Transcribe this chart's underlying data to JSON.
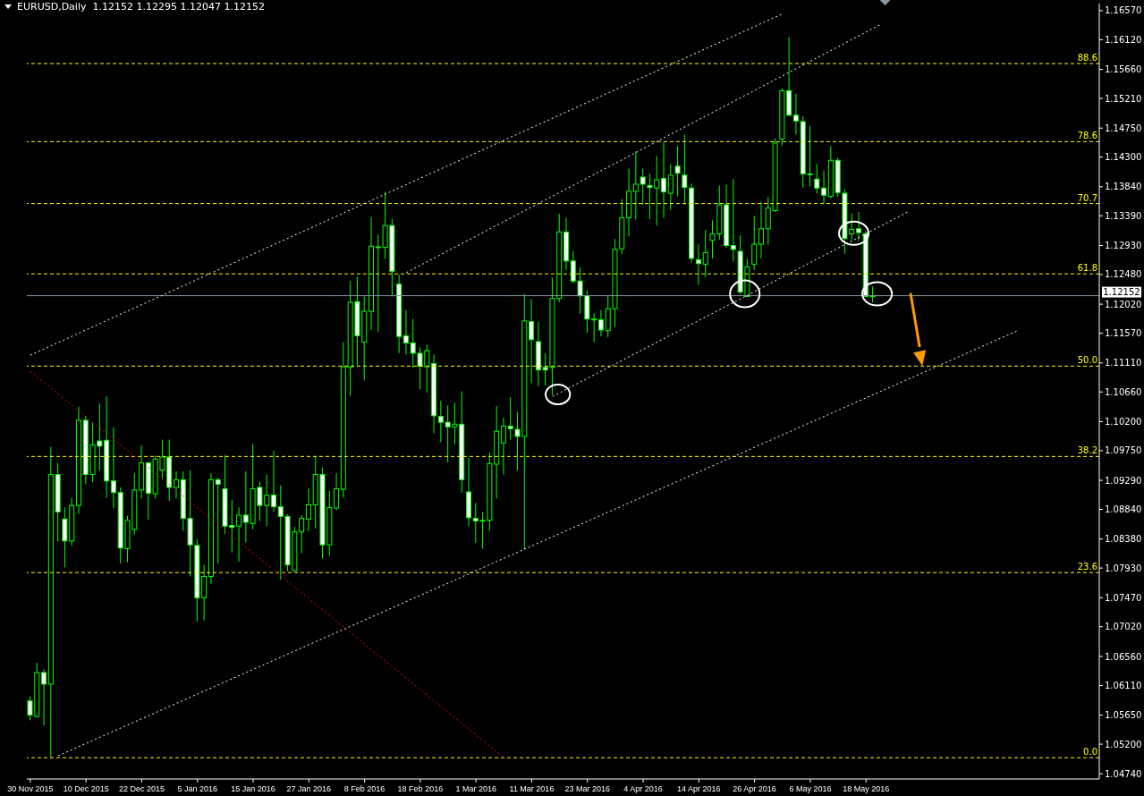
{
  "chart_data": {
    "type": "candlestick",
    "title": "EURUSD,Daily  1.12152 1.12295 1.12047 1.12152",
    "categories": [
      "30 Nov 2015",
      null,
      null,
      null,
      null,
      null,
      null,
      null,
      "10 Dec 2015",
      null,
      null,
      null,
      null,
      null,
      null,
      null,
      "22 Dec 2015",
      null,
      null,
      null,
      null,
      null,
      null,
      null,
      "5 Jan 2016",
      null,
      null,
      null,
      null,
      null,
      null,
      null,
      "15 Jan 2016",
      null,
      null,
      null,
      null,
      null,
      null,
      null,
      "27 Jan 2016",
      null,
      null,
      null,
      null,
      null,
      null,
      null,
      "8 Feb 2016",
      null,
      null,
      null,
      null,
      null,
      null,
      null,
      "18 Feb 2016",
      null,
      null,
      null,
      null,
      null,
      null,
      null,
      "1 Mar 2016",
      null,
      null,
      null,
      null,
      null,
      null,
      null,
      "11 Mar 2016",
      null,
      null,
      null,
      null,
      null,
      null,
      null,
      "23 Mar 2016",
      null,
      null,
      null,
      null,
      null,
      null,
      null,
      "4 Apr 2016",
      null,
      null,
      null,
      null,
      null,
      null,
      null,
      "14 Apr 2016",
      null,
      null,
      null,
      null,
      null,
      null,
      null,
      "26 Apr 2016",
      null,
      null,
      null,
      null,
      null,
      null,
      null,
      "6 May 2016",
      null,
      null,
      null,
      null,
      null,
      null,
      null,
      "18 May 2016",
      null,
      null,
      null,
      null,
      null,
      null,
      null,
      null,
      null,
      null,
      null,
      null,
      null,
      null,
      null,
      null,
      null,
      null,
      null,
      null,
      null,
      null,
      null,
      null,
      null,
      null,
      null,
      null,
      null,
      null,
      null,
      null,
      null
    ],
    "ohlc": [
      [
        1.0587,
        1.0594,
        1.0557,
        1.0565
      ],
      [
        1.0563,
        1.0646,
        1.0561,
        1.0631
      ],
      [
        1.0631,
        1.0636,
        1.0549,
        1.0613
      ],
      [
        1.0613,
        1.0981,
        1.0499,
        1.0938
      ],
      [
        1.0938,
        1.0956,
        1.0834,
        1.088
      ],
      [
        1.0869,
        1.0887,
        1.0794,
        1.0835
      ],
      [
        1.0835,
        1.0902,
        1.0828,
        1.089
      ],
      [
        1.089,
        1.1043,
        1.0877,
        1.1022
      ],
      [
        1.1022,
        1.1029,
        1.0923,
        1.0938
      ],
      [
        1.0938,
        1.1018,
        1.0926,
        1.0984
      ],
      [
        1.099,
        1.1048,
        1.0944,
        1.0982
      ],
      [
        1.0991,
        1.1059,
        1.0902,
        1.0928
      ],
      [
        1.0928,
        1.1011,
        1.0886,
        1.091
      ],
      [
        1.091,
        1.0918,
        1.08,
        1.0824
      ],
      [
        1.0823,
        1.0874,
        1.0802,
        1.0867
      ],
      [
        1.0853,
        1.094,
        1.0845,
        1.0914
      ],
      [
        1.0914,
        1.0983,
        1.0901,
        1.0956
      ],
      [
        1.0956,
        1.0958,
        1.0868,
        1.0909
      ],
      [
        1.0908,
        1.0967,
        1.0901,
        1.0962
      ],
      [
        1.0945,
        1.0992,
        1.0932,
        1.0965
      ],
      [
        1.0965,
        1.0992,
        1.0897,
        1.0918
      ],
      [
        1.0918,
        1.0943,
        1.0901,
        1.093
      ],
      [
        1.093,
        1.0943,
        1.0851,
        1.087
      ],
      [
        1.087,
        1.0945,
        1.078,
        1.0829
      ],
      [
        1.0828,
        1.0838,
        1.071,
        1.0747
      ],
      [
        1.0747,
        1.0798,
        1.0712,
        1.078
      ],
      [
        1.078,
        1.094,
        1.0768,
        1.093
      ],
      [
        1.093,
        1.0933,
        1.08,
        1.0923
      ],
      [
        1.0916,
        1.0968,
        1.0846,
        1.0858
      ],
      [
        1.0859,
        1.0899,
        1.0817,
        1.0856
      ],
      [
        1.0858,
        1.0887,
        1.0803,
        1.0875
      ],
      [
        1.0875,
        1.0943,
        1.0833,
        1.0864
      ],
      [
        1.0862,
        1.0985,
        1.0853,
        1.0916
      ],
      [
        1.0918,
        1.0927,
        1.0866,
        1.089
      ],
      [
        1.089,
        1.0938,
        1.0858,
        1.0906
      ],
      [
        1.0906,
        1.0975,
        1.088,
        1.0888
      ],
      [
        1.0888,
        1.0921,
        1.0775,
        1.0873
      ],
      [
        1.0873,
        1.0876,
        1.0788,
        1.0798
      ],
      [
        1.0789,
        1.0857,
        1.0788,
        1.0849
      ],
      [
        1.0849,
        1.0875,
        1.0816,
        1.087
      ],
      [
        1.0869,
        1.0916,
        1.085,
        1.0891
      ],
      [
        1.0891,
        1.0967,
        1.0854,
        1.0938
      ],
      [
        1.0938,
        1.0949,
        1.0808,
        1.0829
      ],
      [
        1.0829,
        1.0913,
        1.0812,
        1.0887
      ],
      [
        1.0886,
        1.094,
        1.0883,
        1.0916
      ],
      [
        1.0915,
        1.1143,
        1.0902,
        1.1105
      ],
      [
        1.1104,
        1.1238,
        1.106,
        1.1205
      ],
      [
        1.1206,
        1.1245,
        1.1107,
        1.1153
      ],
      [
        1.1143,
        1.1214,
        1.1084,
        1.1191
      ],
      [
        1.1191,
        1.1337,
        1.1162,
        1.1292
      ],
      [
        1.129,
        1.131,
        1.1159,
        1.1291
      ],
      [
        1.129,
        1.1376,
        1.1272,
        1.1324
      ],
      [
        1.1324,
        1.1334,
        1.1214,
        1.1253
      ],
      [
        1.1233,
        1.1248,
        1.1126,
        1.1152
      ],
      [
        1.1153,
        1.1193,
        1.1124,
        1.1142
      ],
      [
        1.1142,
        1.1179,
        1.1104,
        1.1126
      ],
      [
        1.1126,
        1.1135,
        1.107,
        1.1106
      ],
      [
        1.1105,
        1.1139,
        1.1065,
        1.113
      ],
      [
        1.111,
        1.1124,
        1.1002,
        1.1029
      ],
      [
        1.1028,
        1.1052,
        1.0988,
        1.1019
      ],
      [
        1.1019,
        1.1045,
        1.0957,
        1.1012
      ],
      [
        1.1012,
        1.1049,
        1.0985,
        1.1016
      ],
      [
        1.1016,
        1.1067,
        1.091,
        1.093
      ],
      [
        1.0911,
        1.0964,
        1.0858,
        1.0871
      ],
      [
        1.087,
        1.0894,
        1.0832,
        1.0866
      ],
      [
        1.0867,
        1.088,
        1.0823,
        1.0867
      ],
      [
        1.0867,
        1.0972,
        1.0851,
        1.0955
      ],
      [
        1.0954,
        1.1044,
        1.0901,
        1.1005
      ],
      [
        1.0987,
        1.1026,
        1.0938,
        1.1013
      ],
      [
        1.1013,
        1.1058,
        1.0992,
        1.1009
      ],
      [
        1.1008,
        1.1035,
        1.0944,
        1.0997
      ],
      [
        1.0997,
        1.1218,
        1.0822,
        1.1176
      ],
      [
        1.1175,
        1.121,
        1.108,
        1.1147
      ],
      [
        1.1144,
        1.1175,
        1.1075,
        1.11
      ],
      [
        1.1104,
        1.1126,
        1.1076,
        1.11
      ],
      [
        1.1104,
        1.1243,
        1.1061,
        1.1211
      ],
      [
        1.1211,
        1.1342,
        1.1205,
        1.1314
      ],
      [
        1.1314,
        1.1336,
        1.1255,
        1.1269
      ],
      [
        1.1269,
        1.1284,
        1.1234,
        1.1238
      ],
      [
        1.1238,
        1.1259,
        1.1187,
        1.1215
      ],
      [
        1.1215,
        1.1223,
        1.1158,
        1.1179
      ],
      [
        1.1179,
        1.1188,
        1.1143,
        1.1179
      ],
      [
        1.1178,
        1.1193,
        1.1152,
        1.1162
      ],
      [
        1.1161,
        1.1215,
        1.1151,
        1.1195
      ],
      [
        1.1195,
        1.1303,
        1.1167,
        1.1287
      ],
      [
        1.1288,
        1.1365,
        1.128,
        1.1336
      ],
      [
        1.1336,
        1.1412,
        1.1307,
        1.1377
      ],
      [
        1.1377,
        1.1439,
        1.1333,
        1.1388
      ],
      [
        1.1399,
        1.1412,
        1.1356,
        1.1388
      ],
      [
        1.1386,
        1.1404,
        1.1334,
        1.1383
      ],
      [
        1.1382,
        1.1432,
        1.1324,
        1.1395
      ],
      [
        1.1397,
        1.1453,
        1.1336,
        1.1376
      ],
      [
        1.1374,
        1.1419,
        1.1348,
        1.1402
      ],
      [
        1.1416,
        1.1447,
        1.1369,
        1.1405
      ],
      [
        1.1402,
        1.1465,
        1.1357,
        1.1383
      ],
      [
        1.1382,
        1.1389,
        1.1267,
        1.1273
      ],
      [
        1.1271,
        1.1295,
        1.1232,
        1.1265
      ],
      [
        1.1264,
        1.1317,
        1.1244,
        1.1282
      ],
      [
        1.1301,
        1.1332,
        1.1273,
        1.1311
      ],
      [
        1.1311,
        1.1386,
        1.1302,
        1.1356
      ],
      [
        1.1356,
        1.1387,
        1.1289,
        1.1293
      ],
      [
        1.1293,
        1.1396,
        1.1268,
        1.1287
      ],
      [
        1.1284,
        1.1309,
        1.1217,
        1.1221
      ],
      [
        1.1214,
        1.1272,
        1.1214,
        1.126
      ],
      [
        1.1264,
        1.1339,
        1.1255,
        1.1295
      ],
      [
        1.1295,
        1.136,
        1.1273,
        1.1319
      ],
      [
        1.1319,
        1.1368,
        1.1294,
        1.1351
      ],
      [
        1.1347,
        1.1459,
        1.1345,
        1.1452
      ],
      [
        1.1458,
        1.1537,
        1.1448,
        1.1533
      ],
      [
        1.1533,
        1.1616,
        1.1494,
        1.1495
      ],
      [
        1.1495,
        1.1529,
        1.1465,
        1.1486
      ],
      [
        1.1485,
        1.1493,
        1.1383,
        1.1404
      ],
      [
        1.1404,
        1.1478,
        1.1385,
        1.1404
      ],
      [
        1.1396,
        1.1419,
        1.1374,
        1.1382
      ],
      [
        1.1382,
        1.1409,
        1.1358,
        1.1371
      ],
      [
        1.1369,
        1.1447,
        1.1366,
        1.1425
      ],
      [
        1.1425,
        1.1429,
        1.1368,
        1.1375
      ],
      [
        1.1374,
        1.138,
        1.128,
        1.1304
      ],
      [
        1.1311,
        1.1343,
        1.1301,
        1.1318
      ],
      [
        1.1319,
        1.1345,
        1.13,
        1.1313
      ],
      [
        1.1311,
        1.1315,
        1.1214,
        1.1214
      ],
      [
        1.12152,
        1.12295,
        1.12047,
        1.12152
      ],
      null,
      null,
      null,
      null,
      null,
      null,
      null,
      null,
      null,
      null,
      null,
      null,
      null,
      null,
      null,
      null,
      null,
      null,
      null,
      null,
      null,
      null,
      null,
      null,
      null,
      null,
      null,
      null,
      null,
      null,
      null,
      null
    ],
    "series": [
      {
        "type": "line",
        "color": "#ffffff",
        "line_style": "dotted",
        "values": [
          1.1123,
          null,
          null,
          null,
          null,
          null,
          null,
          null,
          null,
          null,
          null,
          null,
          null,
          null,
          null,
          null,
          null,
          null,
          null,
          null,
          null,
          null,
          null,
          null,
          null,
          null,
          null,
          null,
          null,
          null,
          null,
          null,
          null,
          null,
          null,
          null,
          null,
          null,
          null,
          null,
          null,
          null,
          null,
          null,
          null,
          null,
          null,
          null,
          null,
          null,
          null,
          null,
          null,
          null,
          null,
          null,
          null,
          null,
          null,
          null,
          null,
          null,
          null,
          null,
          null,
          null,
          null,
          null,
          null,
          null,
          null,
          null,
          null,
          null,
          null,
          null,
          null,
          null,
          null,
          null,
          null,
          null,
          null,
          null,
          null,
          null,
          null,
          null,
          null,
          null,
          null,
          null,
          null,
          null,
          null,
          null,
          null,
          null,
          null,
          null,
          null,
          null,
          null,
          null,
          null,
          null,
          null,
          null,
          1.1652,
          null,
          null,
          null,
          null,
          null,
          null,
          null,
          null,
          null,
          null,
          null,
          null,
          null,
          null,
          null,
          null,
          null,
          null,
          null,
          null,
          null,
          null,
          null,
          null,
          null,
          null,
          null,
          null,
          null,
          null,
          null,
          null,
          null,
          null,
          null,
          null,
          null,
          null,
          null,
          null,
          null,
          null,
          null,
          null,
          null
        ]
      },
      {
        "type": "line",
        "color": "#ffffff",
        "line_style": "dotted",
        "values": [
          null,
          null,
          null,
          null,
          null,
          null,
          null,
          null,
          null,
          null,
          null,
          null,
          null,
          null,
          null,
          null,
          null,
          null,
          null,
          null,
          null,
          null,
          null,
          null,
          null,
          null,
          null,
          null,
          null,
          null,
          null,
          null,
          null,
          null,
          null,
          null,
          null,
          null,
          null,
          null,
          null,
          null,
          null,
          null,
          null,
          null,
          null,
          null,
          null,
          null,
          null,
          null,
          null,
          null,
          1.1251,
          null,
          null,
          null,
          null,
          null,
          null,
          null,
          null,
          null,
          null,
          null,
          null,
          null,
          null,
          null,
          null,
          null,
          null,
          null,
          null,
          null,
          null,
          null,
          null,
          null,
          null,
          null,
          null,
          null,
          null,
          null,
          null,
          null,
          null,
          null,
          null,
          null,
          null,
          null,
          null,
          null,
          null,
          null,
          null,
          null,
          null,
          null,
          null,
          null,
          null,
          null,
          null,
          null,
          null,
          null,
          null,
          null,
          null,
          null,
          null,
          null,
          null,
          null,
          null,
          null,
          null,
          null,
          1.1635,
          null,
          null,
          null,
          null,
          null,
          null,
          null,
          null,
          null,
          null,
          null,
          null,
          null,
          null,
          null,
          null,
          null,
          null,
          null,
          null,
          null,
          null,
          null,
          null,
          null,
          null,
          null,
          null,
          null,
          null,
          null
        ]
      },
      {
        "type": "line",
        "color": "#ffffff",
        "line_style": "dotted",
        "values": [
          null,
          null,
          null,
          null,
          null,
          null,
          null,
          null,
          null,
          null,
          null,
          null,
          null,
          null,
          null,
          null,
          null,
          null,
          null,
          null,
          null,
          null,
          null,
          null,
          null,
          null,
          null,
          null,
          null,
          null,
          null,
          null,
          null,
          null,
          null,
          null,
          null,
          null,
          null,
          null,
          null,
          null,
          null,
          null,
          null,
          null,
          null,
          null,
          null,
          null,
          null,
          null,
          null,
          null,
          null,
          null,
          null,
          null,
          null,
          null,
          null,
          null,
          null,
          null,
          null,
          null,
          null,
          null,
          null,
          null,
          null,
          null,
          null,
          null,
          null,
          1.1059,
          null,
          null,
          null,
          null,
          null,
          null,
          null,
          null,
          null,
          null,
          null,
          null,
          null,
          null,
          null,
          null,
          null,
          null,
          null,
          null,
          null,
          null,
          null,
          null,
          null,
          null,
          null,
          null,
          null,
          null,
          null,
          null,
          null,
          null,
          null,
          null,
          null,
          null,
          null,
          null,
          null,
          null,
          null,
          null,
          null,
          null,
          null,
          null,
          null,
          null,
          1.1345,
          null,
          null,
          null,
          null,
          null,
          null,
          null,
          null,
          null,
          null,
          null,
          null,
          null,
          null,
          null,
          null,
          null,
          null,
          null,
          null,
          null,
          null,
          null,
          null,
          null,
          null,
          null
        ]
      },
      {
        "type": "line",
        "color": "#ffffff",
        "line_style": "dotted",
        "values": [
          null,
          null,
          null,
          null,
          1.0502,
          null,
          null,
          null,
          null,
          null,
          null,
          null,
          null,
          null,
          null,
          null,
          null,
          null,
          null,
          null,
          null,
          null,
          null,
          null,
          null,
          null,
          null,
          null,
          null,
          null,
          null,
          null,
          null,
          null,
          null,
          null,
          null,
          null,
          null,
          null,
          null,
          null,
          null,
          null,
          null,
          null,
          null,
          null,
          null,
          null,
          null,
          null,
          null,
          null,
          null,
          null,
          null,
          null,
          null,
          null,
          null,
          null,
          null,
          null,
          null,
          null,
          null,
          null,
          null,
          null,
          null,
          null,
          null,
          null,
          null,
          null,
          null,
          null,
          null,
          null,
          null,
          null,
          null,
          null,
          null,
          null,
          null,
          null,
          null,
          null,
          null,
          null,
          null,
          null,
          null,
          null,
          null,
          null,
          null,
          null,
          null,
          null,
          null,
          null,
          null,
          null,
          null,
          null,
          null,
          null,
          null,
          null,
          null,
          null,
          null,
          null,
          null,
          null,
          null,
          null,
          null,
          null,
          null,
          null,
          null,
          null,
          null,
          null,
          null,
          null,
          null,
          null,
          null,
          null,
          null,
          null,
          null,
          null,
          null,
          null,
          null,
          null,
          1.1162,
          null,
          null,
          null,
          null,
          null,
          null,
          null,
          null,
          null,
          null,
          null
        ]
      },
      {
        "type": "line",
        "color": "#ff0000",
        "line_style": "dotted",
        "values": [
          1.1098,
          null,
          null,
          null,
          null,
          null,
          null,
          null,
          null,
          null,
          null,
          null,
          null,
          null,
          null,
          null,
          null,
          null,
          null,
          null,
          null,
          null,
          null,
          null,
          null,
          null,
          null,
          null,
          null,
          null,
          null,
          null,
          null,
          null,
          null,
          null,
          null,
          null,
          null,
          null,
          null,
          null,
          null,
          null,
          null,
          null,
          null,
          null,
          null,
          null,
          null,
          null,
          null,
          null,
          null,
          null,
          null,
          null,
          null,
          null,
          null,
          null,
          null,
          null,
          null,
          null,
          null,
          null,
          1.0499,
          null,
          null,
          null,
          null,
          null,
          null,
          null,
          null,
          null,
          null,
          null,
          null,
          null,
          null,
          null,
          null,
          null,
          null,
          null,
          null,
          null,
          null,
          null,
          null,
          null,
          null,
          null,
          null,
          null,
          null,
          null,
          null,
          null,
          null,
          null,
          null,
          null,
          null,
          null,
          null,
          null,
          null,
          null,
          null,
          null,
          null,
          null,
          null,
          null,
          null,
          null,
          null,
          null,
          null,
          null,
          null,
          null,
          null,
          null,
          null,
          null,
          null,
          null,
          null,
          null,
          null,
          null,
          null,
          null,
          null,
          null,
          null,
          null,
          null,
          null,
          null,
          null,
          null,
          null,
          null,
          null,
          null,
          null,
          null,
          null
        ]
      }
    ],
    "ylim": [
      1.0466,
      1.1668
    ],
    "yticks": [
      {
        "value": 1.1657,
        "label": "1.16570"
      },
      {
        "value": 1.1612,
        "label": "1.16120"
      },
      {
        "value": 1.1566,
        "label": "1.15660"
      },
      {
        "value": 1.1521,
        "label": "1.15210"
      },
      {
        "value": 1.1475,
        "label": "1.14750"
      },
      {
        "value": 1.143,
        "label": "1.14300"
      },
      {
        "value": 1.1384,
        "label": "1.13840"
      },
      {
        "value": 1.1339,
        "label": "1.13390"
      },
      {
        "value": 1.1293,
        "label": "1.12930"
      },
      {
        "value": 1.1248,
        "label": "1.12480"
      },
      {
        "value": 1.1202,
        "label": "1.12020"
      },
      {
        "value": 1.1157,
        "label": "1.11570"
      },
      {
        "value": 1.1111,
        "label": "1.11110"
      },
      {
        "value": 1.1066,
        "label": "1.10660"
      },
      {
        "value": 1.102,
        "label": "1.10200"
      },
      {
        "value": 1.0975,
        "label": "1.09750"
      },
      {
        "value": 1.0929,
        "label": "1.09290"
      },
      {
        "value": 1.0884,
        "label": "1.08840"
      },
      {
        "value": 1.0838,
        "label": "1.08380"
      },
      {
        "value": 1.0793,
        "label": "1.07930"
      },
      {
        "value": 1.0747,
        "label": "1.07470"
      },
      {
        "value": 1.0702,
        "label": "1.07020"
      },
      {
        "value": 1.0656,
        "label": "1.06560"
      },
      {
        "value": 1.0611,
        "label": "1.06110"
      },
      {
        "value": 1.0565,
        "label": "1.05650"
      },
      {
        "value": 1.052,
        "label": "1.05200"
      },
      {
        "value": 1.0474,
        "label": "1.04740"
      }
    ],
    "ref_lines": [
      {
        "axis": "y",
        "value": 1.1575,
        "color": "#ffff00",
        "line_style": "dashed"
      },
      {
        "axis": "y",
        "value": 1.1454,
        "color": "#ffff00",
        "line_style": "dashed"
      },
      {
        "axis": "y",
        "value": 1.1358,
        "color": "#ffff00",
        "line_style": "dashed"
      },
      {
        "axis": "y",
        "value": 1.1249,
        "color": "#ffff00",
        "line_style": "dashed"
      },
      {
        "axis": "y",
        "value": 1.1106,
        "color": "#ffff00",
        "line_style": "dashed"
      },
      {
        "axis": "y",
        "value": 1.0966,
        "color": "#ffff00",
        "line_style": "dashed"
      },
      {
        "axis": "y",
        "value": 1.0786,
        "color": "#ffff00",
        "line_style": "dashed"
      },
      {
        "axis": "y",
        "value": 1.0499,
        "color": "#ffff00",
        "line_style": "dashed"
      },
      {
        "axis": "y",
        "value": 1.12152,
        "label": "1.12152",
        "color": "#8494a4",
        "line_style": "solid"
      }
    ],
    "annotations": [
      {
        "text": "88.6",
        "y": 1.1575
      },
      {
        "text": "78.6",
        "y": 1.1454
      },
      {
        "text": "70.7",
        "y": 1.1358
      },
      {
        "text": "61.8",
        "y": 1.1249
      },
      {
        "text": "50.0",
        "y": 1.1106
      },
      {
        "text": "38.2",
        "y": 1.0966
      },
      {
        "text": "23.6",
        "y": 1.0786
      },
      {
        "text": "0.0",
        "y": 1.0499
      }
    ]
  }
}
